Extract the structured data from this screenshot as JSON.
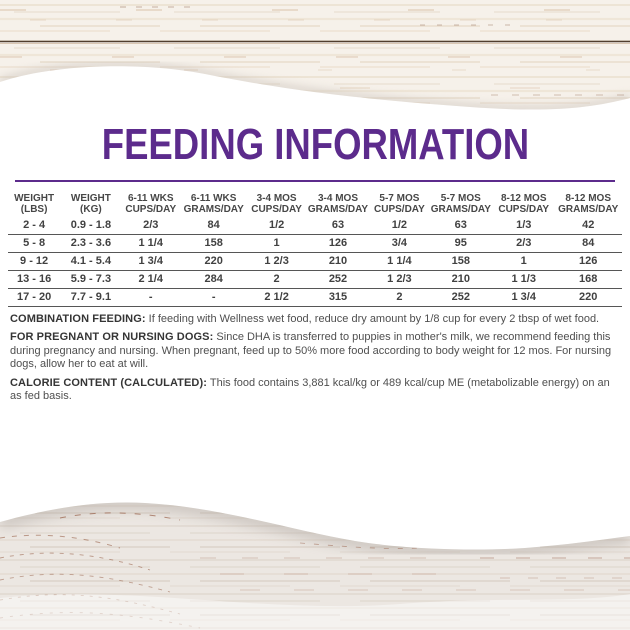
{
  "title": "FEEDING INFORMATION",
  "accent_color": "#5c2b8c",
  "table": {
    "columns": [
      {
        "line1": "WEIGHT",
        "line2": "(LBS)"
      },
      {
        "line1": "WEIGHT",
        "line2": "(KG)"
      },
      {
        "line1": "6-11 WKS",
        "line2": "CUPS/DAY"
      },
      {
        "line1": "6-11 WKS",
        "line2": "GRAMS/DAY"
      },
      {
        "line1": "3-4 MOS",
        "line2": "CUPS/DAY"
      },
      {
        "line1": "3-4 MOS",
        "line2": "GRAMS/DAY"
      },
      {
        "line1": "5-7 MOS",
        "line2": "CUPS/DAY"
      },
      {
        "line1": "5-7 MOS",
        "line2": "GRAMS/DAY"
      },
      {
        "line1": "8-12 MOS",
        "line2": "CUPS/DAY"
      },
      {
        "line1": "8-12 MOS",
        "line2": "GRAMS/DAY"
      }
    ],
    "rows": [
      [
        "2 - 4",
        "0.9 - 1.8",
        "2/3",
        "84",
        "1/2",
        "63",
        "1/2",
        "63",
        "1/3",
        "42"
      ],
      [
        "5 - 8",
        "2.3 - 3.6",
        "1 1/4",
        "158",
        "1",
        "126",
        "3/4",
        "95",
        "2/3",
        "84"
      ],
      [
        "9 - 12",
        "4.1 - 5.4",
        "1 3/4",
        "220",
        "1 2/3",
        "210",
        "1 1/4",
        "158",
        "1",
        "126"
      ],
      [
        "13 - 16",
        "5.9 - 7.3",
        "2 1/4",
        "284",
        "2",
        "252",
        "1 2/3",
        "210",
        "1 1/3",
        "168"
      ],
      [
        "17 - 20",
        "7.7 - 9.1",
        "-",
        "-",
        "2 1/2",
        "315",
        "2",
        "252",
        "1 3/4",
        "220"
      ]
    ]
  },
  "notes": [
    {
      "label": "COMBINATION FEEDING:",
      "text": " If feeding with Wellness wet food, reduce dry amount by 1/8 cup for every 2 tbsp of wet food."
    },
    {
      "label": "FOR PREGNANT OR NURSING DOGS:",
      "text": " Since DHA is transferred to puppies in mother's milk, we recommend feeding this during pregnancy and nursing. When pregnant, feed up to 50% more food according to body weight for 12 mos. For nursing dogs, allow her to eat at will."
    },
    {
      "label": "CALORIE CONTENT (CALCULATED):",
      "text": " This food contains 3,881 kcal/kg or 489 kcal/cup ME (metabolizable energy) on an as fed basis."
    }
  ]
}
